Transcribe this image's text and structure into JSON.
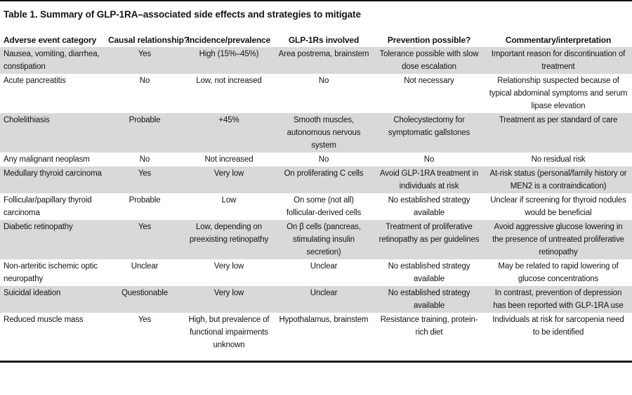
{
  "colors": {
    "stripe": "#d9d9d9",
    "text": "#141414",
    "rule": "#111111"
  },
  "table": {
    "title": "Table 1. Summary of GLP-1RA–associated side effects and strategies to mitigate",
    "columns": [
      "Adverse event category",
      "Causal relationship?",
      "Incidence/prevalence",
      "GLP-1Rs involved",
      "Prevention possible?",
      "Commentary/interpretation"
    ],
    "rows": [
      {
        "shaded": true,
        "cells": [
          "Nausea, vomiting, diarrhea, constipation",
          "Yes",
          "High (15%–45%)",
          "Area postrema, brainstem",
          "Tolerance possible with slow dose escalation",
          "Important reason for discontinuation of treatment"
        ]
      },
      {
        "shaded": false,
        "cells": [
          "Acute pancreatitis",
          "No",
          "Low, not increased",
          "No",
          "Not necessary",
          "Relationship suspected because of typical abdominal symptoms and serum lipase elevation"
        ]
      },
      {
        "shaded": true,
        "cells": [
          "Cholelithiasis",
          "Probable",
          "+45%",
          "Smooth muscles, autonomous nervous system",
          "Cholecystectomy for symptomatic gallstones",
          "Treatment as per standard of care"
        ]
      },
      {
        "shaded": false,
        "cells": [
          "Any malignant neoplasm",
          "No",
          "Not increased",
          "No",
          "No",
          "No residual risk"
        ]
      },
      {
        "shaded": true,
        "cells": [
          "Medullary thyroid carcinoma",
          "Yes",
          "Very low",
          "On proliferating C cells",
          "Avoid GLP-1RA treatment in individuals at risk",
          "At-risk status (personal/family history or MEN2 is a contraindication)"
        ]
      },
      {
        "shaded": false,
        "cells": [
          "Follicular/papillary thyroid carcinoma",
          "Probable",
          "Low",
          "On some (not all) follicular-derived cells",
          "No established strategy available",
          "Unclear if screening for thyroid nodules would be beneficial"
        ]
      },
      {
        "shaded": true,
        "cells": [
          "Diabetic retinopathy",
          "Yes",
          "Low, depending on preexisting retinopathy",
          "On β cells (pancreas, stimulating insulin secretion)",
          "Treatment of proliferative retinopathy as per guidelines",
          "Avoid aggressive glucose lowering in the presence of untreated proliferative retinopathy"
        ]
      },
      {
        "shaded": false,
        "cells": [
          "Non-arteritic ischemic optic neuropathy",
          "Unclear",
          "Very low",
          "Unclear",
          "No established strategy available",
          "May be related to rapid lowering of glucose concentrations"
        ]
      },
      {
        "shaded": true,
        "cells": [
          "Suicidal ideation",
          "Questionable",
          "Very low",
          "Unclear",
          "No established strategy available",
          "In contrast, prevention of depression has been reported with GLP-1RA use"
        ]
      },
      {
        "shaded": false,
        "cells": [
          "Reduced muscle mass",
          "Yes",
          "High, but prevalence of functional impairments unknown",
          "Hypothalamus, brainstem",
          "Resistance training, protein-rich diet",
          "Individuals at risk for sarcopenia need to be identified"
        ]
      }
    ]
  }
}
